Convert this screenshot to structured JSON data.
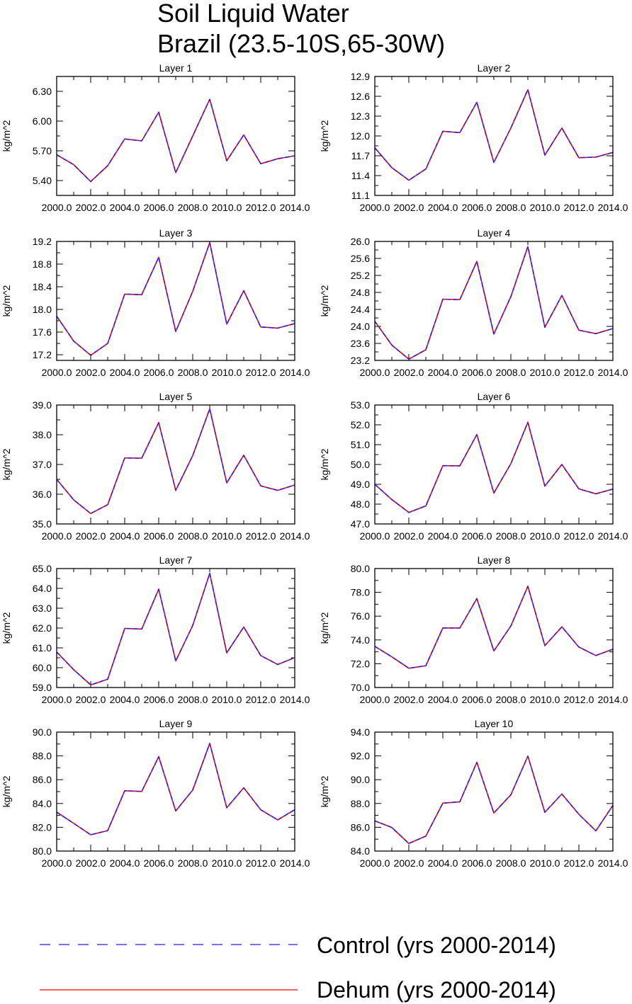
{
  "figure": {
    "title_line1": "Soil Liquid Water",
    "title_line2": "Brazil (23.5-10S,65-30W)"
  },
  "legend": {
    "entries": [
      {
        "label": "Control (yrs 2000-2014)",
        "color": "#1f1fff",
        "style": "dashed"
      },
      {
        "label": "Dehum (yrs 2000-2014)",
        "color": "#ff0000",
        "style": "solid"
      }
    ]
  },
  "chart_data": [
    {
      "type": "line",
      "title": "Layer 1",
      "ylabel": "kg/m^2",
      "x": [
        2000,
        2001,
        2002,
        2003,
        2004,
        2005,
        2006,
        2007,
        2008,
        2009,
        2010,
        2011,
        2012,
        2013,
        2014
      ],
      "xticks": [
        "2000.0",
        "2002.0",
        "2004.0",
        "2006.0",
        "2008.0",
        "2010.0",
        "2012.0",
        "2014.0"
      ],
      "ylim": [
        5.25,
        6.45
      ],
      "yticks": [
        "5.40",
        "5.70",
        "6.00",
        "6.30"
      ],
      "ytick_values": [
        5.4,
        5.7,
        6.0,
        6.3
      ],
      "series": [
        {
          "name": "Control (yrs 2000-2014)",
          "color": "#1f1fff",
          "style": "dashed",
          "values": [
            5.66,
            5.56,
            5.39,
            5.55,
            5.82,
            5.8,
            6.09,
            5.48,
            5.85,
            6.22,
            5.6,
            5.86,
            5.57,
            5.62,
            5.65
          ]
        },
        {
          "name": "Dehum (yrs 2000-2014)",
          "color": "#ff0000",
          "style": "solid",
          "values": [
            5.66,
            5.56,
            5.39,
            5.55,
            5.82,
            5.8,
            6.09,
            5.48,
            5.85,
            6.22,
            5.6,
            5.86,
            5.57,
            5.62,
            5.65
          ]
        }
      ]
    },
    {
      "type": "line",
      "title": "Layer 2",
      "ylabel": "kg/m^2",
      "x": [
        2000,
        2001,
        2002,
        2003,
        2004,
        2005,
        2006,
        2007,
        2008,
        2009,
        2010,
        2011,
        2012,
        2013,
        2014
      ],
      "xticks": [
        "2000.0",
        "2002.0",
        "2004.0",
        "2006.0",
        "2008.0",
        "2010.0",
        "2012.0",
        "2014.0"
      ],
      "ylim": [
        11.1,
        12.9
      ],
      "yticks": [
        "11.1",
        "11.4",
        "11.7",
        "12.0",
        "12.3",
        "12.6",
        "12.9"
      ],
      "ytick_values": [
        11.1,
        11.4,
        11.7,
        12.0,
        12.3,
        12.6,
        12.9
      ],
      "series": [
        {
          "name": "Control (yrs 2000-2014)",
          "color": "#1f1fff",
          "style": "dashed",
          "values": [
            11.82,
            11.52,
            11.33,
            11.5,
            12.07,
            12.05,
            12.51,
            11.6,
            12.12,
            12.7,
            11.71,
            12.12,
            11.67,
            11.68,
            11.75
          ]
        },
        {
          "name": "Dehum (yrs 2000-2014)",
          "color": "#ff0000",
          "style": "solid",
          "values": [
            11.82,
            11.52,
            11.33,
            11.5,
            12.07,
            12.05,
            12.51,
            11.6,
            12.12,
            12.7,
            11.71,
            12.12,
            11.67,
            11.68,
            11.75
          ]
        }
      ]
    },
    {
      "type": "line",
      "title": "Layer 3",
      "ylabel": "kg/m^2",
      "x": [
        2000,
        2001,
        2002,
        2003,
        2004,
        2005,
        2006,
        2007,
        2008,
        2009,
        2010,
        2011,
        2012,
        2013,
        2014
      ],
      "xticks": [
        "2000.0",
        "2002.0",
        "2004.0",
        "2006.0",
        "2008.0",
        "2010.0",
        "2012.0",
        "2014.0"
      ],
      "ylim": [
        17.1,
        19.2
      ],
      "yticks": [
        "17.2",
        "17.6",
        "18.0",
        "18.4",
        "18.8",
        "19.2"
      ],
      "ytick_values": [
        17.2,
        17.6,
        18.0,
        18.4,
        18.8,
        19.2
      ],
      "series": [
        {
          "name": "Control (yrs 2000-2014)",
          "color": "#1f1fff",
          "style": "dashed",
          "values": [
            17.88,
            17.44,
            17.19,
            17.4,
            18.27,
            18.26,
            18.92,
            17.61,
            18.32,
            19.18,
            17.74,
            18.33,
            17.69,
            17.67,
            17.75
          ]
        },
        {
          "name": "Dehum (yrs 2000-2014)",
          "color": "#ff0000",
          "style": "solid",
          "values": [
            17.88,
            17.44,
            17.19,
            17.4,
            18.27,
            18.26,
            18.92,
            17.61,
            18.32,
            19.18,
            17.74,
            18.33,
            17.69,
            17.67,
            17.75
          ]
        }
      ]
    },
    {
      "type": "line",
      "title": "Layer 4",
      "ylabel": "kg/m^2",
      "x": [
        2000,
        2001,
        2002,
        2003,
        2004,
        2005,
        2006,
        2007,
        2008,
        2009,
        2010,
        2011,
        2012,
        2013,
        2014
      ],
      "xticks": [
        "2000.0",
        "2002.0",
        "2004.0",
        "2006.0",
        "2008.0",
        "2010.0",
        "2012.0",
        "2014.0"
      ],
      "ylim": [
        23.2,
        26.0
      ],
      "yticks": [
        "23.2",
        "23.6",
        "24.0",
        "24.4",
        "24.8",
        "25.2",
        "25.6",
        "26.0"
      ],
      "ytick_values": [
        23.2,
        23.6,
        24.0,
        24.4,
        24.8,
        25.2,
        25.6,
        26.0
      ],
      "series": [
        {
          "name": "Control (yrs 2000-2014)",
          "color": "#1f1fff",
          "style": "dashed",
          "values": [
            24.12,
            23.56,
            23.23,
            23.45,
            24.64,
            24.63,
            25.53,
            23.82,
            24.7,
            25.88,
            23.98,
            24.73,
            23.91,
            23.83,
            23.95
          ]
        },
        {
          "name": "Dehum (yrs 2000-2014)",
          "color": "#ff0000",
          "style": "solid",
          "values": [
            24.12,
            23.56,
            23.23,
            23.45,
            24.64,
            24.63,
            25.53,
            23.82,
            24.7,
            25.88,
            23.98,
            24.73,
            23.91,
            23.83,
            23.95
          ]
        }
      ]
    },
    {
      "type": "line",
      "title": "Layer 5",
      "ylabel": "kg/m^2",
      "x": [
        2000,
        2001,
        2002,
        2003,
        2004,
        2005,
        2006,
        2007,
        2008,
        2009,
        2010,
        2011,
        2012,
        2013,
        2014
      ],
      "xticks": [
        "2000.0",
        "2002.0",
        "2004.0",
        "2006.0",
        "2008.0",
        "2010.0",
        "2012.0",
        "2014.0"
      ],
      "ylim": [
        35.0,
        39.0
      ],
      "yticks": [
        "35.0",
        "36.0",
        "37.0",
        "38.0",
        "39.0"
      ],
      "ytick_values": [
        35.0,
        36.0,
        37.0,
        38.0,
        39.0
      ],
      "series": [
        {
          "name": "Control (yrs 2000-2014)",
          "color": "#1f1fff",
          "style": "dashed",
          "values": [
            36.5,
            35.81,
            35.35,
            35.65,
            37.22,
            37.21,
            38.41,
            36.13,
            37.3,
            38.87,
            36.38,
            37.31,
            36.28,
            36.13,
            36.31
          ]
        },
        {
          "name": "Dehum (yrs 2000-2014)",
          "color": "#ff0000",
          "style": "solid",
          "values": [
            36.5,
            35.81,
            35.35,
            35.65,
            37.22,
            37.21,
            38.41,
            36.13,
            37.3,
            38.87,
            36.38,
            37.31,
            36.28,
            36.13,
            36.31
          ]
        }
      ]
    },
    {
      "type": "line",
      "title": "Layer 6",
      "ylabel": "kg/m^2",
      "x": [
        2000,
        2001,
        2002,
        2003,
        2004,
        2005,
        2006,
        2007,
        2008,
        2009,
        2010,
        2011,
        2012,
        2013,
        2014
      ],
      "xticks": [
        "2000.0",
        "2002.0",
        "2004.0",
        "2006.0",
        "2008.0",
        "2010.0",
        "2012.0",
        "2014.0"
      ],
      "ylim": [
        47.0,
        53.0
      ],
      "yticks": [
        "47.0",
        "48.0",
        "49.0",
        "50.0",
        "51.0",
        "52.0",
        "53.0"
      ],
      "ytick_values": [
        47.0,
        48.0,
        49.0,
        50.0,
        51.0,
        52.0,
        53.0
      ],
      "series": [
        {
          "name": "Control (yrs 2000-2014)",
          "color": "#1f1fff",
          "style": "dashed",
          "values": [
            49.0,
            48.23,
            47.58,
            47.91,
            49.94,
            49.93,
            51.51,
            48.56,
            50.04,
            52.13,
            48.91,
            50.0,
            48.77,
            48.52,
            48.76
          ]
        },
        {
          "name": "Dehum (yrs 2000-2014)",
          "color": "#ff0000",
          "style": "solid",
          "values": [
            49.0,
            48.23,
            47.58,
            47.91,
            49.94,
            49.93,
            51.51,
            48.56,
            50.04,
            52.13,
            48.91,
            50.0,
            48.77,
            48.52,
            48.76
          ]
        }
      ]
    },
    {
      "type": "line",
      "title": "Layer 7",
      "ylabel": "kg/m^2",
      "x": [
        2000,
        2001,
        2002,
        2003,
        2004,
        2005,
        2006,
        2007,
        2008,
        2009,
        2010,
        2011,
        2012,
        2013,
        2014
      ],
      "xticks": [
        "2000.0",
        "2002.0",
        "2004.0",
        "2006.0",
        "2008.0",
        "2010.0",
        "2012.0",
        "2014.0"
      ],
      "ylim": [
        59.0,
        65.0
      ],
      "yticks": [
        "59.0",
        "60.0",
        "61.0",
        "62.0",
        "63.0",
        "64.0",
        "65.0"
      ],
      "ytick_values": [
        59.0,
        60.0,
        61.0,
        62.0,
        63.0,
        64.0,
        65.0
      ],
      "series": [
        {
          "name": "Control (yrs 2000-2014)",
          "color": "#1f1fff",
          "style": "dashed",
          "values": [
            60.79,
            59.9,
            59.13,
            59.42,
            61.98,
            61.95,
            63.96,
            60.34,
            62.13,
            64.76,
            60.75,
            62.05,
            60.61,
            60.16,
            60.51
          ]
        },
        {
          "name": "Dehum (yrs 2000-2014)",
          "color": "#ff0000",
          "style": "solid",
          "values": [
            60.79,
            59.9,
            59.13,
            59.42,
            61.98,
            61.95,
            63.96,
            60.34,
            62.13,
            64.76,
            60.75,
            62.05,
            60.61,
            60.16,
            60.51
          ]
        }
      ]
    },
    {
      "type": "line",
      "title": "Layer 8",
      "ylabel": "kg/m^2",
      "x": [
        2000,
        2001,
        2002,
        2003,
        2004,
        2005,
        2006,
        2007,
        2008,
        2009,
        2010,
        2011,
        2012,
        2013,
        2014
      ],
      "xticks": [
        "2000.0",
        "2002.0",
        "2004.0",
        "2006.0",
        "2008.0",
        "2010.0",
        "2012.0",
        "2014.0"
      ],
      "ylim": [
        70.0,
        80.0
      ],
      "yticks": [
        "70.0",
        "72.0",
        "74.0",
        "76.0",
        "78.0",
        "80.0"
      ],
      "ytick_values": [
        70.0,
        72.0,
        74.0,
        76.0,
        78.0,
        80.0
      ],
      "series": [
        {
          "name": "Control (yrs 2000-2014)",
          "color": "#1f1fff",
          "style": "dashed",
          "values": [
            73.46,
            72.58,
            71.62,
            71.83,
            75.01,
            75.0,
            77.48,
            73.07,
            75.17,
            78.51,
            73.52,
            75.1,
            73.4,
            72.69,
            73.22
          ]
        },
        {
          "name": "Dehum (yrs 2000-2014)",
          "color": "#ff0000",
          "style": "solid",
          "values": [
            73.46,
            72.58,
            71.62,
            71.83,
            75.01,
            75.0,
            77.48,
            73.07,
            75.17,
            78.51,
            73.52,
            75.1,
            73.4,
            72.69,
            73.22
          ]
        }
      ]
    },
    {
      "type": "line",
      "title": "Layer 9",
      "ylabel": "kg/m^2",
      "x": [
        2000,
        2001,
        2002,
        2003,
        2004,
        2005,
        2006,
        2007,
        2008,
        2009,
        2010,
        2011,
        2012,
        2013,
        2014
      ],
      "xticks": [
        "2000.0",
        "2002.0",
        "2004.0",
        "2006.0",
        "2008.0",
        "2010.0",
        "2012.0",
        "2014.0"
      ],
      "ylim": [
        80.0,
        90.0
      ],
      "yticks": [
        "80.0",
        "82.0",
        "84.0",
        "86.0",
        "88.0",
        "90.0"
      ],
      "ytick_values": [
        80.0,
        82.0,
        84.0,
        86.0,
        88.0,
        90.0
      ],
      "series": [
        {
          "name": "Control (yrs 2000-2014)",
          "color": "#1f1fff",
          "style": "dashed",
          "values": [
            83.28,
            82.33,
            81.37,
            81.72,
            85.07,
            85.01,
            87.94,
            83.37,
            85.13,
            89.05,
            83.64,
            85.32,
            83.47,
            82.62,
            83.48
          ]
        },
        {
          "name": "Dehum (yrs 2000-2014)",
          "color": "#ff0000",
          "style": "solid",
          "values": [
            83.28,
            82.33,
            81.37,
            81.72,
            85.07,
            85.01,
            87.94,
            83.37,
            85.13,
            89.05,
            83.64,
            85.32,
            83.47,
            82.62,
            83.48
          ]
        }
      ]
    },
    {
      "type": "line",
      "title": "Layer 10",
      "ylabel": "kg/m^2",
      "x": [
        2000,
        2001,
        2002,
        2003,
        2004,
        2005,
        2006,
        2007,
        2008,
        2009,
        2010,
        2011,
        2012,
        2013,
        2014
      ],
      "xticks": [
        "2000.0",
        "2002.0",
        "2004.0",
        "2006.0",
        "2008.0",
        "2010.0",
        "2012.0",
        "2014.0"
      ],
      "ylim": [
        84.0,
        94.0
      ],
      "yticks": [
        "84.0",
        "86.0",
        "88.0",
        "90.0",
        "92.0",
        "94.0"
      ],
      "ytick_values": [
        84.0,
        86.0,
        88.0,
        90.0,
        92.0,
        94.0
      ],
      "series": [
        {
          "name": "Control (yrs 2000-2014)",
          "color": "#1f1fff",
          "style": "dashed",
          "values": [
            86.54,
            85.98,
            84.64,
            85.26,
            88.03,
            88.14,
            91.46,
            87.2,
            88.73,
            91.98,
            87.26,
            88.8,
            87.09,
            85.7,
            87.84
          ]
        },
        {
          "name": "Dehum (yrs 2000-2014)",
          "color": "#ff0000",
          "style": "solid",
          "values": [
            86.54,
            85.98,
            84.64,
            85.26,
            88.03,
            88.14,
            91.46,
            87.2,
            88.73,
            91.98,
            87.26,
            88.8,
            87.09,
            85.7,
            87.84
          ]
        }
      ]
    }
  ]
}
